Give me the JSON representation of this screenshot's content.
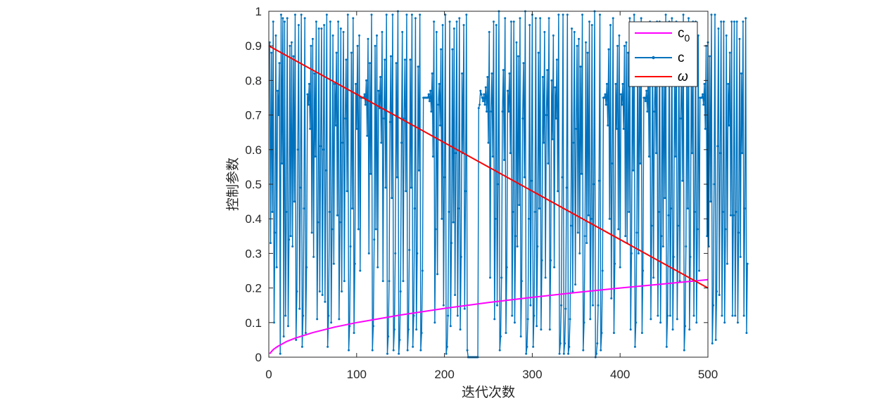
{
  "chart_data": {
    "type": "line",
    "xlabel": "迭代次数",
    "ylabel": "控制参数",
    "xlim": [
      0,
      500
    ],
    "ylim": [
      0,
      1
    ],
    "xticks": [
      "0",
      "100",
      "200",
      "300",
      "400",
      "500"
    ],
    "yticks": [
      "0",
      "0.1",
      "0.2",
      "0.3",
      "0.4",
      "0.5",
      "0.6",
      "0.7",
      "0.8",
      "0.9",
      "1"
    ],
    "grid": false,
    "legend_position": "top-right",
    "series": [
      {
        "name": "c₀",
        "legend_main": "c",
        "legend_sub": "0",
        "color": "#ff00ff",
        "marker": "none",
        "x": [
          1,
          5,
          10,
          20,
          30,
          50,
          75,
          100,
          150,
          200,
          250,
          300,
          350,
          400,
          450,
          500
        ],
        "values": [
          0.01,
          0.022,
          0.031,
          0.045,
          0.055,
          0.071,
          0.087,
          0.1,
          0.122,
          0.141,
          0.158,
          0.173,
          0.187,
          0.2,
          0.212,
          0.224
        ]
      },
      {
        "name": "c",
        "legend_main": "c",
        "color": "#0072bd",
        "marker": "dot",
        "x_start": 1,
        "x_step": 1,
        "values": [
          0.91,
          0.33,
          0.88,
          0.42,
          0.97,
          0.1,
          0.36,
          0.93,
          0.26,
          0.77,
          0.7,
          0.85,
          0.01,
          0.99,
          0.56,
          0.98,
          0.06,
          0.97,
          0.12,
          0.42,
          0.98,
          0.09,
          0.34,
          0.9,
          0.35,
          0.91,
          0.32,
          0.87,
          0.45,
          0.99,
          0.05,
          0.19,
          0.6,
          0.96,
          0.14,
          0.49,
          0.99,
          0.03,
          0.12,
          0.43,
          0.98,
          0.07,
          0.26,
          0.76,
          0.73,
          0.79,
          0.66,
          0.9,
          0.36,
          0.92,
          0.29,
          0.82,
          0.58,
          0.97,
          0.11,
          0.39,
          0.95,
          0.19,
          0.61,
          0.95,
          0.18,
          0.6,
          0.96,
          0.16,
          0.54,
          0.99,
          0.03,
          0.12,
          0.42,
          0.97,
          0.1,
          0.37,
          0.93,
          0.27,
          0.79,
          0.67,
          0.88,
          0.41,
          0.97,
          0.11,
          0.39,
          0.95,
          0.19,
          0.62,
          0.94,
          0.22,
          0.69,
          0.86,
          0.48,
          0.99,
          0.02,
          0.09,
          0.32,
          0.88,
          0.43,
          0.98,
          0.07,
          0.27,
          0.79,
          0.66,
          0.9,
          0.37,
          0.93,
          0.25,
          0.75,
          0.75,
          0.75,
          0.75,
          0.76,
          0.73,
          0.8,
          0.64,
          0.92,
          0.3,
          0.85,
          0.53,
          0.99,
          0.02,
          0.09,
          0.34,
          0.9,
          0.37,
          0.93,
          0.26,
          0.77,
          0.72,
          0.81,
          0.62,
          0.94,
          0.22,
          0.69,
          0.86,
          0.49,
          0.99,
          0.01,
          0.06,
          0.22,
          0.68,
          0.87,
          0.46,
          0.99,
          0.02,
          0.08,
          0.3,
          0.85,
          0.52,
          1.0,
          0.01,
          0.05,
          0.19,
          0.62,
          0.94,
          0.22,
          0.69,
          0.86,
          0.48,
          0.99,
          0.02,
          0.08,
          0.31,
          0.86,
          0.49,
          0.99,
          0.03,
          0.12,
          0.43,
          0.98,
          0.08,
          0.3,
          0.84,
          0.54,
          0.99,
          0.02,
          0.07,
          0.25,
          0.75,
          0.75,
          0.75,
          0.75,
          0.75,
          0.75,
          0.76,
          0.74,
          0.77,
          0.71,
          0.82,
          0.58,
          0.97,
          0.1,
          0.37,
          0.94,
          0.24,
          0.73,
          0.79,
          0.67,
          0.89,
          0.4,
          0.96,
          0.15,
          0.52,
          0.99,
          0.01,
          0.03,
          0.12,
          0.42,
          0.97,
          0.09,
          0.33,
          0.89,
          0.39,
          0.95,
          0.18,
          0.59,
          0.97,
          0.12,
          0.43,
          0.98,
          0.08,
          0.29,
          0.82,
          0.59,
          0.96,
          0.14,
          0.48,
          0.99,
          0.02,
          0.0,
          0.0,
          0.0,
          0.0,
          0.0,
          0.0,
          0.0,
          0.0,
          0.0,
          0.0,
          0.0,
          0.0,
          0.72,
          0.73,
          0.77,
          0.76,
          0.75,
          0.74,
          0.76,
          0.73,
          0.78,
          0.71,
          0.81,
          0.62,
          0.94,
          0.23,
          0.71,
          0.82,
          0.58,
          0.97,
          0.11,
          0.4,
          0.96,
          0.15,
          0.5,
          1.0,
          0.02,
          0.06,
          0.23,
          0.71,
          0.83,
          0.57,
          0.98,
          0.07,
          0.26,
          0.77,
          0.71,
          0.82,
          0.59,
          0.97,
          0.12,
          0.42,
          0.97,
          0.1,
          0.35,
          0.91,
          0.32,
          0.87,
          0.44,
          0.98,
          0.06,
          0.22,
          0.69,
          0.85,
          0.52,
          1.0,
          0.01,
          0.03,
          0.11,
          0.4,
          0.96,
          0.15,
          0.51,
          0.99,
          0.03,
          0.12,
          0.42,
          0.98,
          0.09,
          0.32,
          0.88,
          0.43,
          0.98,
          0.08,
          0.28,
          0.81,
          0.62,
          0.94,
          0.23,
          0.7,
          0.83,
          0.56,
          0.98,
          0.08,
          0.28,
          0.8,
          0.63,
          0.93,
          0.26,
          0.78,
          0.69,
          0.86,
          0.48,
          0.99,
          0.01,
          0.04,
          0.15,
          0.52,
          0.99,
          0.01,
          0.04,
          0.14,
          0.49,
          0.99,
          0.01,
          0.03,
          0.11,
          0.38,
          0.95,
          0.19,
          0.62,
          0.94,
          0.21,
          0.66,
          0.9,
          0.36,
          0.92,
          0.3,
          0.84,
          0.53,
          0.99,
          0.02,
          0.1,
          0.35,
          0.91,
          0.33,
          0.88,
          0.41,
          0.97,
          0.11,
          0.4,
          0.96,
          0.15,
          0.5,
          1.0,
          0.0,
          0.01,
          0.04,
          0.15,
          0.51,
          0.99,
          0.02,
          0.07,
          0.25,
          0.75,
          0.75,
          0.76,
          0.73,
          0.79,
          0.67,
          0.89,
          0.4,
          0.96,
          0.17,
          0.56,
          0.98,
          0.07,
          0.27,
          0.79,
          0.66,
          0.9,
          0.37,
          0.93,
          0.26,
          0.76,
          0.73,
          0.79,
          0.66,
          0.9,
          0.35,
          0.91,
          0.33,
          0.88,
          0.42,
          0.98,
          0.08,
          0.3,
          0.84,
          0.54,
          0.99,
          0.03,
          0.1,
          0.36,
          0.92,
          0.3,
          0.83,
          0.56,
          0.98,
          0.07,
          0.25,
          0.75,
          0.75,
          0.74,
          0.77,
          0.71,
          0.82,
          0.58,
          0.97,
          0.11,
          0.38,
          0.94,
          0.23,
          0.71,
          0.82,
          0.59,
          0.97,
          0.12,
          0.42,
          0.97,
          0.1,
          0.35,
          0.91,
          0.32,
          0.87,
          0.46,
          0.99,
          0.03,
          0.12,
          0.41,
          0.97,
          0.12,
          0.43,
          0.98,
          0.08,
          0.29,
          0.82,
          0.58,
          0.97,
          0.11,
          0.38,
          0.94,
          0.22,
          0.69,
          0.85,
          0.51,
          0.99,
          0.02,
          0.09,
          0.32,
          0.88,
          0.43,
          0.98,
          0.08,
          0.29,
          0.82,
          0.59,
          0.97,
          0.12,
          0.42,
          0.97,
          0.1,
          0.37,
          0.93,
          0.25,
          0.75,
          0.75,
          0.75,
          0.76,
          0.73,
          0.79,
          0.66,
          0.9,
          0.35,
          0.91,
          0.32,
          0.87,
          0.45,
          0.99,
          0.04,
          0.15,
          0.5,
          0.99,
          0.05,
          0.19,
          0.61,
          0.95,
          0.18,
          0.59,
          0.97,
          0.12,
          0.42,
          0.97,
          0.1,
          0.37,
          0.93,
          0.27,
          0.79,
          0.67,
          0.88,
          0.41,
          0.97,
          0.12,
          0.41,
          0.97,
          0.12,
          0.42,
          0.97,
          0.1,
          0.36,
          0.92,
          0.29,
          0.82,
          0.59,
          0.97,
          0.12,
          0.43,
          0.98,
          0.07,
          0.27
        ]
      },
      {
        "name": "ω",
        "legend_main": "ω",
        "color": "#ff0000",
        "marker": "none",
        "x": [
          0,
          500
        ],
        "values": [
          0.9,
          0.2
        ]
      }
    ]
  }
}
